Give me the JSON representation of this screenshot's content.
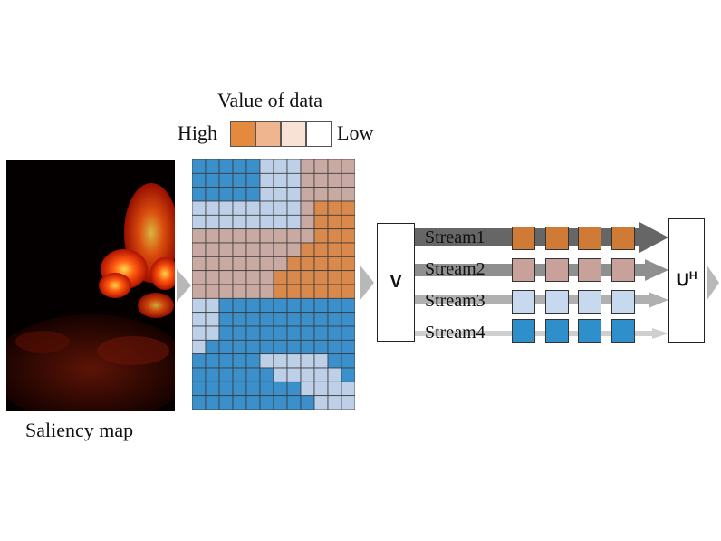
{
  "legend": {
    "title": "Value of data",
    "high_label": "High",
    "low_label": "Low",
    "swatch_colors": [
      "#e48a3e",
      "#efb58e",
      "#f8e2d6",
      "#ffffff"
    ]
  },
  "saliency": {
    "caption": "Saliency map"
  },
  "grid": {
    "cols": 12,
    "rows": 18,
    "region_colors": {
      "high": "#d9894b",
      "medium": "#c9aaa2",
      "low": "#bdd0e8",
      "lowest": "#3b8fcb"
    }
  },
  "v_box": {
    "label": "V"
  },
  "uh_box": {
    "label": "U",
    "superscript": "H"
  },
  "streams": [
    {
      "label": "Stream1",
      "color": "#cf7a35"
    },
    {
      "label": "Stream2",
      "color": "#c9a19b"
    },
    {
      "label": "Stream3",
      "color": "#c7d9ee"
    },
    {
      "label": "Stream4",
      "color": "#2f8fca"
    }
  ]
}
